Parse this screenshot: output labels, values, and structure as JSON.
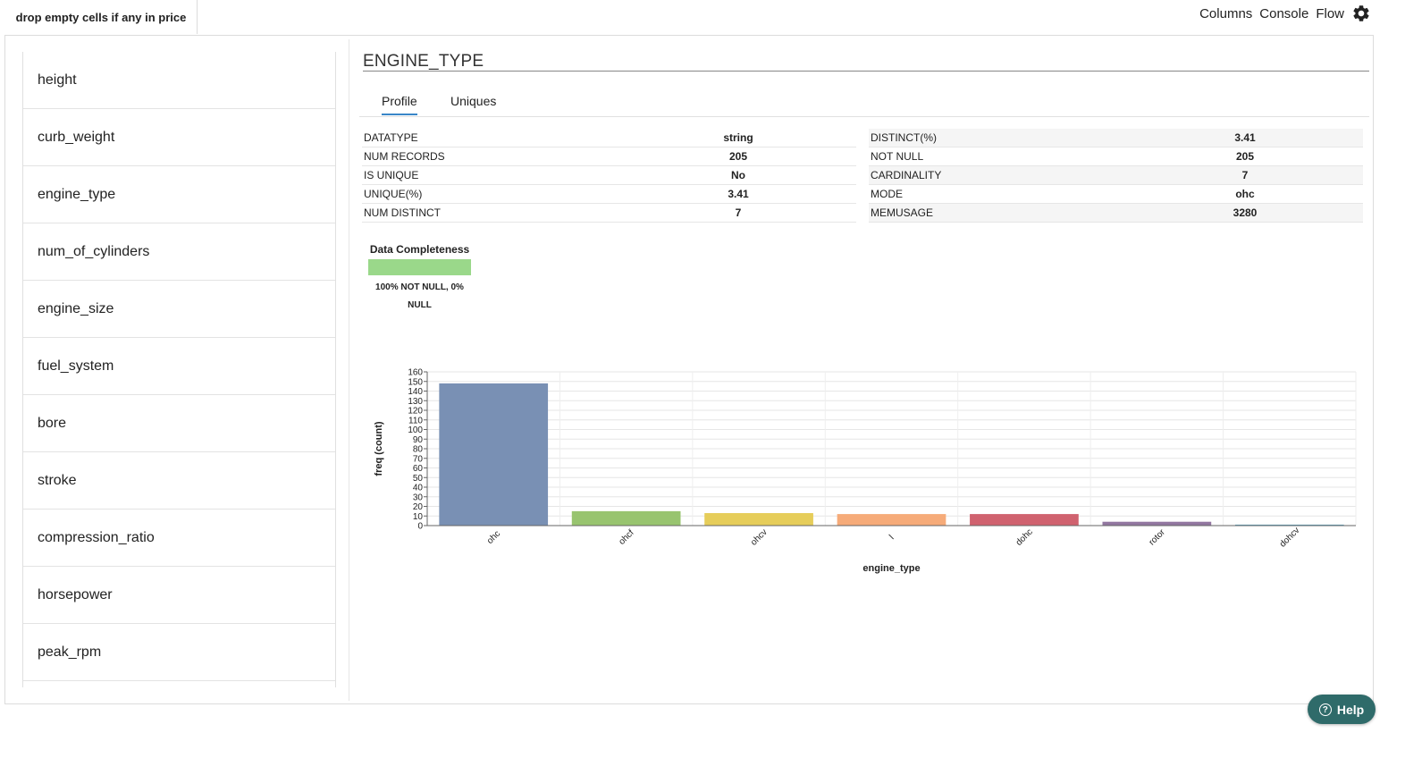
{
  "step_tab": "drop empty cells if any in price",
  "top_links": [
    "Columns",
    "Console",
    "Flow"
  ],
  "sidebar": {
    "items": [
      "height",
      "curb_weight",
      "engine_type",
      "num_of_cylinders",
      "engine_size",
      "fuel_system",
      "bore",
      "stroke",
      "compression_ratio",
      "horsepower",
      "peak_rpm"
    ]
  },
  "column_title": "ENGINE_TYPE",
  "tabs": [
    "Profile",
    "Uniques"
  ],
  "active_tab": "Profile",
  "stats_left": [
    {
      "label": "DATATYPE",
      "value": "string"
    },
    {
      "label": "NUM RECORDS",
      "value": "205"
    },
    {
      "label": "IS UNIQUE",
      "value": "No"
    },
    {
      "label": "UNIQUE(%)",
      "value": "3.41"
    },
    {
      "label": "NUM DISTINCT",
      "value": "7"
    }
  ],
  "stats_right": [
    {
      "label": "DISTINCT(%)",
      "value": "3.41"
    },
    {
      "label": "NOT NULL",
      "value": "205"
    },
    {
      "label": "CARDINALITY",
      "value": "7"
    },
    {
      "label": "MODE",
      "value": "ohc"
    },
    {
      "label": "MEMUSAGE",
      "value": "3280"
    }
  ],
  "completeness": {
    "title": "Data Completeness",
    "label": "100% NOT NULL, 0% NULL",
    "not_null_fraction": 1.0,
    "color": "#9ad88a"
  },
  "chart_data": {
    "type": "bar",
    "categories": [
      "ohc",
      "ohcf",
      "ohcv",
      "l",
      "dohc",
      "rotor",
      "dohcv"
    ],
    "values": [
      148,
      15,
      13,
      12,
      12,
      4,
      1
    ],
    "colors": [
      "#7990b4",
      "#98c46f",
      "#e6cd5a",
      "#f6ab79",
      "#d0626f",
      "#9277a0",
      "#5aa7c4"
    ],
    "xlabel": "engine_type",
    "ylabel": "freq (count)",
    "ylim": [
      0,
      160
    ],
    "yticks": [
      0,
      10,
      20,
      30,
      40,
      50,
      60,
      70,
      80,
      90,
      100,
      110,
      120,
      130,
      140,
      150,
      160
    ],
    "grid": true
  },
  "help_label": "Help"
}
